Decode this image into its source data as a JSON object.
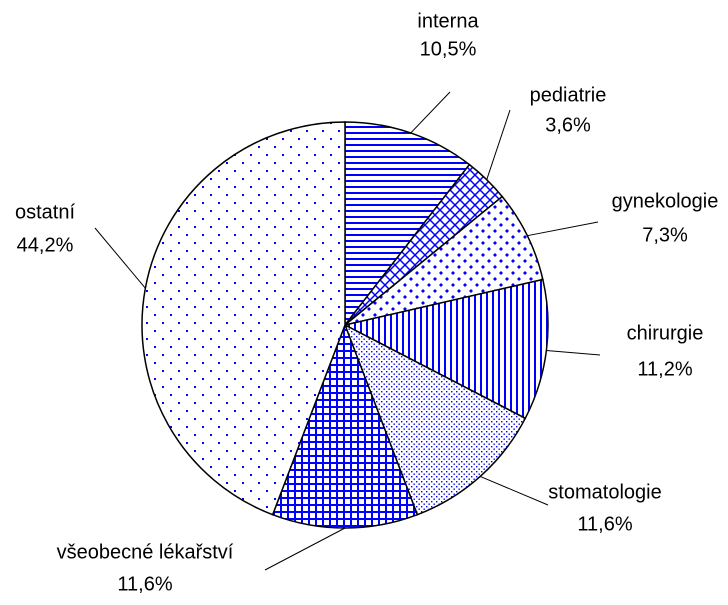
{
  "chart_data": {
    "type": "pie",
    "categories": [
      "interna",
      "pediatrie",
      "gynekologie",
      "chirurgie",
      "stomatologie",
      "všeobecné lékařství",
      "ostatní"
    ],
    "values": [
      10.5,
      3.6,
      7.3,
      11.2,
      11.6,
      11.6,
      44.2
    ],
    "value_labels": [
      "10,5%",
      "3,6%",
      "7,3%",
      "11,2%",
      "11,6%",
      "11,6%",
      "44,2%"
    ],
    "color": "#0000ff",
    "patterns": [
      "horizontal",
      "diagonal-cross",
      "diamond",
      "vertical",
      "fine-dots",
      "grid",
      "dots"
    ]
  }
}
